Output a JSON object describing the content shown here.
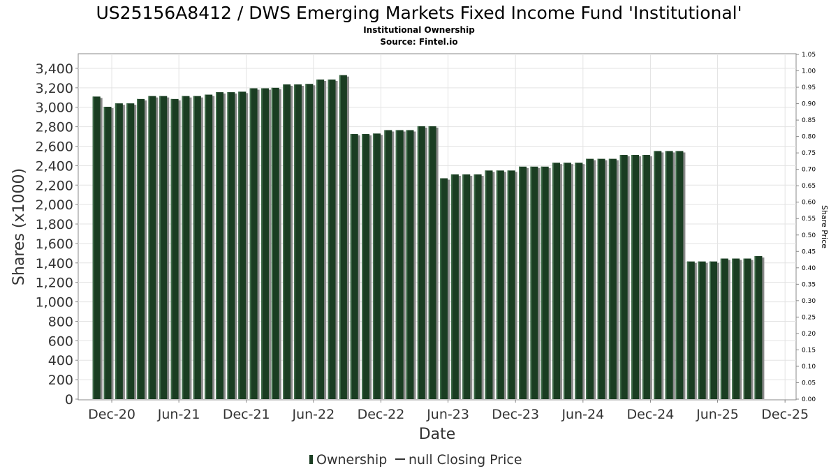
{
  "chart_data": {
    "type": "bar",
    "title": "US25156A8412 / DWS Emerging Markets Fixed Income Fund 'Institutional'",
    "subtitle": "Institutional Ownership",
    "source": "Source: Fintel.io",
    "xlabel": "Date",
    "ylabel": "Shares (x1000)",
    "y2label": "Share Price",
    "ylim": [
      0,
      3500
    ],
    "y2lim": [
      0,
      1.05
    ],
    "xlim": [
      "2020-09-01",
      "2025-12-31"
    ],
    "grid": true,
    "legend_position": "bottom",
    "y_ticks": [
      "0",
      "200",
      "400",
      "600",
      "800",
      "1,000",
      "1,200",
      "1,400",
      "1,600",
      "1,800",
      "2,000",
      "2,200",
      "2,400",
      "2,600",
      "2,800",
      "3,000",
      "3,200",
      "3,400"
    ],
    "y2_ticks": [
      "0.00",
      "0.05",
      "0.10",
      "0.15",
      "0.20",
      "0.25",
      "0.30",
      "0.35",
      "0.40",
      "0.45",
      "0.50",
      "0.55",
      "0.60",
      "0.65",
      "0.70",
      "0.75",
      "0.80",
      "0.85",
      "0.90",
      "0.95",
      "1.00",
      "1.05"
    ],
    "x_ticks": [
      {
        "label": "Dec-20",
        "date": "2020-12-01"
      },
      {
        "label": "Jun-21",
        "date": "2021-06-01"
      },
      {
        "label": "Dec-21",
        "date": "2021-12-01"
      },
      {
        "label": "Jun-22",
        "date": "2022-06-01"
      },
      {
        "label": "Dec-22",
        "date": "2022-12-01"
      },
      {
        "label": "Jun-23",
        "date": "2023-06-01"
      },
      {
        "label": "Dec-23",
        "date": "2023-12-01"
      },
      {
        "label": "Jun-24",
        "date": "2024-06-01"
      },
      {
        "label": "Dec-24",
        "date": "2024-12-01"
      },
      {
        "label": "Jun-25",
        "date": "2025-06-01"
      },
      {
        "label": "Dec-25",
        "date": "2025-12-01"
      }
    ],
    "series": [
      {
        "name": "Ownership",
        "color": "#1a3d22",
        "x": [
          "2020-10-31",
          "2020-11-30",
          "2020-12-31",
          "2021-01-31",
          "2021-02-28",
          "2021-03-31",
          "2021-04-30",
          "2021-05-31",
          "2021-06-30",
          "2021-07-31",
          "2021-08-31",
          "2021-09-30",
          "2021-10-31",
          "2021-11-30",
          "2021-12-31",
          "2022-01-31",
          "2022-02-28",
          "2022-03-31",
          "2022-04-30",
          "2022-05-31",
          "2022-06-30",
          "2022-07-31",
          "2022-08-31",
          "2022-09-30",
          "2022-10-31",
          "2022-11-30",
          "2022-12-31",
          "2023-01-31",
          "2023-02-28",
          "2023-03-31",
          "2023-04-30",
          "2023-05-31",
          "2023-06-30",
          "2023-07-31",
          "2023-08-31",
          "2023-09-30",
          "2023-10-31",
          "2023-11-30",
          "2023-12-31",
          "2024-01-31",
          "2024-02-29",
          "2024-03-31",
          "2024-04-30",
          "2024-05-31",
          "2024-06-30",
          "2024-07-31",
          "2024-08-31",
          "2024-09-30",
          "2024-10-31",
          "2024-11-30",
          "2024-12-31",
          "2025-01-31",
          "2025-02-28",
          "2025-03-31",
          "2025-04-30",
          "2025-05-31",
          "2025-06-30",
          "2025-07-31",
          "2025-08-31",
          "2025-09-30"
        ],
        "values": [
          3110,
          3005,
          3040,
          3040,
          3085,
          3115,
          3115,
          3085,
          3115,
          3115,
          3130,
          3155,
          3155,
          3160,
          3195,
          3195,
          3200,
          3235,
          3235,
          3240,
          3285,
          3285,
          3330,
          2725,
          2725,
          2730,
          2765,
          2765,
          2765,
          2805,
          2805,
          2270,
          2310,
          2310,
          2310,
          2350,
          2350,
          2350,
          2390,
          2390,
          2390,
          2430,
          2430,
          2430,
          2470,
          2470,
          2470,
          2510,
          2510,
          2510,
          2550,
          2550,
          2550,
          1415,
          1415,
          1415,
          1445,
          1445,
          1445,
          1470
        ]
      },
      {
        "name": "null Closing Price",
        "color": "#333333",
        "values": []
      }
    ]
  }
}
